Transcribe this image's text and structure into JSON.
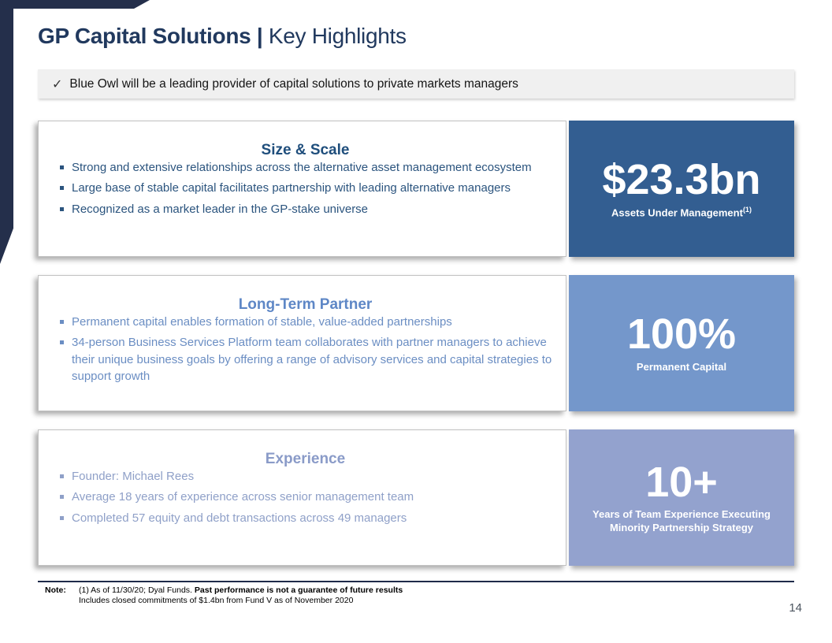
{
  "colors": {
    "navy": "#242F4B",
    "title_text": "#21395E",
    "callout_bg": "#F0F0F0"
  },
  "title": {
    "bold": "GP Capital Solutions | ",
    "regular": "Key Highlights"
  },
  "callout": {
    "check": "✓",
    "text": "Blue Owl will be a leading provider of capital solutions to private markets managers"
  },
  "cards": [
    {
      "title": "Size & Scale",
      "bullets": [
        "Strong and extensive relationships across the alternative asset management ecosystem",
        "Large base of stable capital facilitates partnership with leading alternative managers",
        "Recognized as a market leader in the GP-stake universe"
      ],
      "stat": {
        "value": "$23.3bn",
        "label": "Assets Under Management",
        "sup": "(1)"
      },
      "colors": {
        "panel": "#335E91",
        "title": "#1F4E7C",
        "text": "#2B547E"
      }
    },
    {
      "title": "Long-Term Partner",
      "bullets": [
        "Permanent capital enables formation of stable, value-added partnerships",
        "34-person Business Services Platform team collaborates with partner managers to achieve their unique business goals by offering a range of advisory services and capital strategies to support growth"
      ],
      "stat": {
        "value": "100%",
        "label": "Permanent Capital"
      },
      "colors": {
        "panel": "#7497CB",
        "title": "#5E87C6",
        "text": "#6B8EC3"
      }
    },
    {
      "title": "Experience",
      "bullets": [
        "Founder: Michael Rees",
        "Average 18 years of experience across senior management team",
        "Completed 57 equity and debt transactions across 49 managers"
      ],
      "stat": {
        "value": "10+",
        "label": "Years of Team Experience Executing",
        "label2": "Minority Partnership Strategy"
      },
      "colors": {
        "panel": "#93A2CE",
        "title": "#8A9BC8",
        "text": "#8FA0C8"
      }
    }
  ],
  "note": {
    "label": "Note:",
    "line1_regular": "(1) As of 11/30/20; Dyal Funds. ",
    "line1_bold": "Past performance is not a guarantee of future results",
    "line2": "Includes closed commitments of $1.4bn from Fund V as of November 2020"
  },
  "page_number": "14"
}
